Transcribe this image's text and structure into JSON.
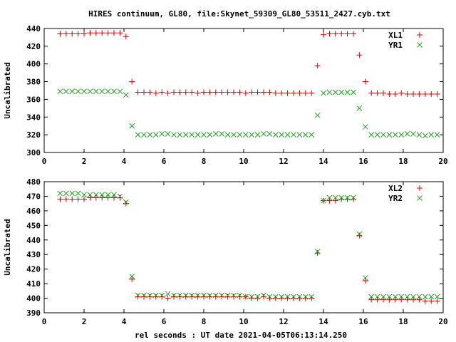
{
  "title": "HIRES continuum, GL80, file:Skynet_59309_GL80_53511_2427.cyb.txt",
  "xlabel": "rel seconds : UT date 2021-04-05T06:13:14.250",
  "colors": {
    "series1": "#d40000",
    "series2": "#22a022"
  },
  "chart_data": [
    {
      "type": "scatter",
      "ylabel": "Uncalibrated",
      "xlim": [
        0,
        20
      ],
      "ylim": [
        300,
        440
      ],
      "xticks": [
        0,
        2,
        4,
        6,
        8,
        10,
        12,
        14,
        16,
        18,
        20
      ],
      "yticks": [
        300,
        320,
        340,
        360,
        380,
        400,
        420,
        440
      ],
      "legend_position": "top-right",
      "series": [
        {
          "name": "XL1",
          "marker": "plus",
          "x": [
            0.8,
            1.1,
            1.4,
            1.7,
            2.0,
            2.3,
            2.6,
            2.9,
            3.2,
            3.5,
            3.8,
            4.1,
            4.4,
            4.7,
            5.0,
            5.3,
            5.6,
            5.9,
            6.2,
            6.5,
            6.8,
            7.1,
            7.4,
            7.7,
            8.0,
            8.3,
            8.6,
            8.9,
            9.2,
            9.5,
            9.8,
            10.1,
            10.4,
            10.7,
            11.0,
            11.3,
            11.6,
            11.9,
            12.2,
            12.5,
            12.8,
            13.1,
            13.4,
            13.7,
            14.0,
            14.3,
            14.6,
            14.9,
            15.2,
            15.5,
            15.8,
            16.1,
            16.4,
            16.7,
            17.0,
            17.3,
            17.6,
            17.9,
            18.2,
            18.5,
            18.8,
            19.1,
            19.4,
            19.7
          ],
          "y": [
            434,
            434,
            434,
            434,
            434,
            435,
            435,
            435,
            435,
            435,
            435,
            431,
            380,
            368,
            368,
            368,
            367,
            368,
            367,
            368,
            368,
            368,
            368,
            367,
            368,
            368,
            368,
            368,
            368,
            368,
            368,
            367,
            368,
            368,
            368,
            368,
            367,
            367,
            367,
            367,
            367,
            367,
            367,
            398,
            433,
            434,
            434,
            434,
            434,
            434,
            410,
            380,
            367,
            367,
            367,
            366,
            366,
            367,
            366,
            366,
            366,
            366,
            366,
            366
          ]
        },
        {
          "name": "YR1",
          "marker": "cross",
          "x": [
            0.8,
            1.1,
            1.4,
            1.7,
            2.0,
            2.3,
            2.6,
            2.9,
            3.2,
            3.5,
            3.8,
            4.1,
            4.4,
            4.7,
            5.0,
            5.3,
            5.6,
            5.9,
            6.2,
            6.5,
            6.8,
            7.1,
            7.4,
            7.7,
            8.0,
            8.3,
            8.6,
            8.9,
            9.2,
            9.5,
            9.8,
            10.1,
            10.4,
            10.7,
            11.0,
            11.3,
            11.6,
            11.9,
            12.2,
            12.5,
            12.8,
            13.1,
            13.4,
            13.7,
            14.0,
            14.3,
            14.6,
            14.9,
            15.2,
            15.5,
            15.8,
            16.1,
            16.4,
            16.7,
            17.0,
            17.3,
            17.6,
            17.9,
            18.2,
            18.5,
            18.8,
            19.1,
            19.4,
            19.7
          ],
          "y": [
            369,
            369,
            369,
            369,
            369,
            369,
            369,
            369,
            369,
            369,
            369,
            365,
            330,
            320,
            320,
            320,
            320,
            321,
            321,
            320,
            320,
            320,
            320,
            320,
            320,
            320,
            321,
            321,
            320,
            320,
            320,
            320,
            320,
            320,
            321,
            321,
            320,
            320,
            320,
            320,
            320,
            320,
            320,
            342,
            367,
            368,
            368,
            368,
            368,
            368,
            350,
            329,
            320,
            320,
            320,
            320,
            320,
            320,
            321,
            321,
            320,
            319,
            320,
            320
          ]
        }
      ]
    },
    {
      "type": "scatter",
      "ylabel": "Uncalibrated",
      "xlim": [
        0,
        20
      ],
      "ylim": [
        390,
        480
      ],
      "xticks": [
        0,
        2,
        4,
        6,
        8,
        10,
        12,
        14,
        16,
        18,
        20
      ],
      "yticks": [
        390,
        400,
        410,
        420,
        430,
        440,
        450,
        460,
        470,
        480
      ],
      "legend_position": "top-right",
      "series": [
        {
          "name": "XL2",
          "marker": "plus",
          "x": [
            0.8,
            1.1,
            1.4,
            1.7,
            2.0,
            2.3,
            2.6,
            2.9,
            3.2,
            3.5,
            3.8,
            4.1,
            4.4,
            4.7,
            5.0,
            5.3,
            5.6,
            5.9,
            6.2,
            6.5,
            6.8,
            7.1,
            7.4,
            7.7,
            8.0,
            8.3,
            8.6,
            8.9,
            9.2,
            9.5,
            9.8,
            10.1,
            10.4,
            10.7,
            11.0,
            11.3,
            11.6,
            11.9,
            12.2,
            12.5,
            12.8,
            13.1,
            13.4,
            13.7,
            14.0,
            14.3,
            14.6,
            14.9,
            15.2,
            15.5,
            15.8,
            16.1,
            16.4,
            16.7,
            17.0,
            17.3,
            17.6,
            17.9,
            18.2,
            18.5,
            18.8,
            19.1,
            19.4,
            19.7
          ],
          "y": [
            468,
            468,
            468,
            468,
            468,
            469,
            469,
            469,
            469,
            469,
            469,
            465,
            413,
            401,
            401,
            401,
            401,
            401,
            400,
            401,
            401,
            401,
            401,
            401,
            401,
            401,
            401,
            401,
            401,
            401,
            401,
            401,
            400,
            400,
            401,
            400,
            400,
            400,
            400,
            400,
            400,
            400,
            400,
            431,
            467,
            467,
            467,
            468,
            468,
            468,
            443,
            412,
            399,
            399,
            399,
            399,
            399,
            399,
            399,
            399,
            399,
            398,
            398,
            398
          ]
        },
        {
          "name": "YR2",
          "marker": "cross",
          "x": [
            0.8,
            1.1,
            1.4,
            1.7,
            2.0,
            2.3,
            2.6,
            2.9,
            3.2,
            3.5,
            3.8,
            4.1,
            4.4,
            4.7,
            5.0,
            5.3,
            5.6,
            5.9,
            6.2,
            6.5,
            6.8,
            7.1,
            7.4,
            7.7,
            8.0,
            8.3,
            8.6,
            8.9,
            9.2,
            9.5,
            9.8,
            10.1,
            10.4,
            10.7,
            11.0,
            11.3,
            11.6,
            11.9,
            12.2,
            12.5,
            12.8,
            13.1,
            13.4,
            13.7,
            14.0,
            14.3,
            14.6,
            14.9,
            15.2,
            15.5,
            15.8,
            16.1,
            16.4,
            16.7,
            17.0,
            17.3,
            17.6,
            17.9,
            18.2,
            18.5,
            18.8,
            19.1,
            19.4,
            19.7
          ],
          "y": [
            472,
            472,
            472,
            472,
            471,
            471,
            471,
            471,
            471,
            471,
            470,
            466,
            415,
            402,
            402,
            402,
            402,
            402,
            403,
            402,
            402,
            402,
            402,
            402,
            402,
            402,
            402,
            402,
            402,
            402,
            402,
            401,
            401,
            401,
            402,
            401,
            401,
            401,
            401,
            401,
            401,
            401,
            401,
            432,
            467,
            469,
            469,
            469,
            469,
            469,
            444,
            414,
            401,
            401,
            401,
            401,
            401,
            401,
            401,
            401,
            401,
            401,
            401,
            401
          ]
        }
      ]
    }
  ]
}
